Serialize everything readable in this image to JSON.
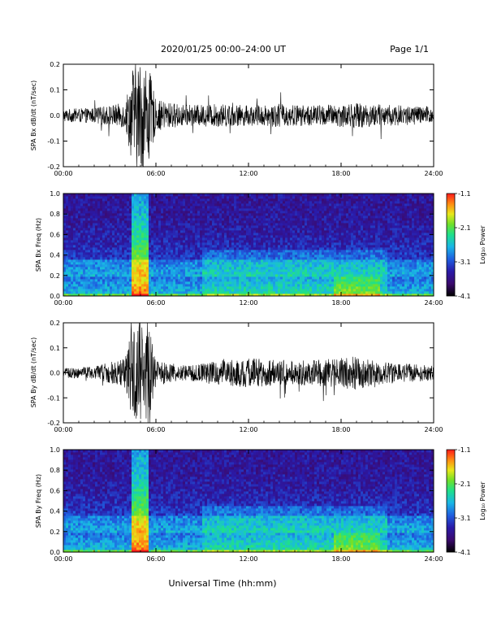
{
  "header": {
    "title": "2020/01/25  00:00–24:00 UT",
    "page": "Page 1/1"
  },
  "colors": {
    "background": "#ffffff",
    "trace": "#000000",
    "colormap": [
      "#000000",
      "#3b0a6e",
      "#2a1aa8",
      "#1f5fe0",
      "#19b6e6",
      "#1fe08a",
      "#6fe02a",
      "#e8e81a",
      "#ff8a12",
      "#ff1a1a"
    ]
  },
  "chart_data": [
    {
      "type": "line",
      "title": "",
      "ylabel": "SPA Bx dB/dt (nT/sec)",
      "xlabel": "",
      "xlim": [
        0,
        24
      ],
      "ylim": [
        -0.2,
        0.2
      ],
      "x_ticks": [
        "00:00",
        "06:00",
        "12:00",
        "18:00",
        "24:00"
      ],
      "y_ticks": [
        "-0.2",
        "-0.1",
        "0.0",
        "0.1",
        "0.2"
      ],
      "envelope": {
        "x_hours": [
          0,
          2,
          4,
          4.5,
          5,
          5.5,
          6,
          8,
          10,
          12,
          14,
          16,
          18,
          19,
          20,
          22,
          24
        ],
        "amplitude": [
          0.025,
          0.03,
          0.05,
          0.2,
          0.22,
          0.2,
          0.06,
          0.04,
          0.045,
          0.04,
          0.045,
          0.04,
          0.045,
          0.05,
          0.045,
          0.04,
          0.035
        ]
      }
    },
    {
      "type": "heatmap",
      "title": "",
      "ylabel": "SPA Bx Freq (Hz)",
      "xlabel": "",
      "xlim": [
        0,
        24
      ],
      "ylim": [
        0,
        1.0
      ],
      "x_ticks": [
        "00:00",
        "06:00",
        "12:00",
        "18:00",
        "24:00"
      ],
      "y_ticks": [
        "0.0",
        "0.2",
        "0.4",
        "0.6",
        "0.8",
        "1.0"
      ],
      "colorbar": {
        "label": "Log₁₀ Power",
        "range": [
          -4.1,
          -1.1
        ],
        "ticks": [
          "-1.1",
          "-2.1",
          "-3.1",
          "-4.1"
        ]
      },
      "features": {
        "storm_band_hours": [
          4.5,
          5.6
        ],
        "enhanced_band_hz": [
          0.2,
          0.35
        ],
        "evening_patch_hours": [
          17.5,
          20.5
        ]
      }
    },
    {
      "type": "line",
      "title": "",
      "ylabel": "SPA By dB/dt (nT/sec)",
      "xlabel": "",
      "xlim": [
        0,
        24
      ],
      "ylim": [
        -0.2,
        0.2
      ],
      "x_ticks": [
        "00:00",
        "06:00",
        "12:00",
        "18:00",
        "24:00"
      ],
      "y_ticks": [
        "-0.2",
        "-0.1",
        "0.0",
        "0.1",
        "0.2"
      ],
      "envelope": {
        "x_hours": [
          0,
          2,
          4,
          4.5,
          5,
          5.5,
          6,
          8,
          10,
          12,
          14,
          16,
          18,
          19,
          20,
          22,
          24
        ],
        "amplitude": [
          0.02,
          0.025,
          0.06,
          0.2,
          0.22,
          0.2,
          0.05,
          0.03,
          0.05,
          0.06,
          0.05,
          0.05,
          0.06,
          0.07,
          0.05,
          0.04,
          0.03
        ]
      }
    },
    {
      "type": "heatmap",
      "title": "",
      "ylabel": "SPA By Freq (Hz)",
      "xlabel": "Universal Time (hh:mm)",
      "xlim": [
        0,
        24
      ],
      "ylim": [
        0,
        1.0
      ],
      "x_ticks": [
        "00:00",
        "06:00",
        "12:00",
        "18:00",
        "24:00"
      ],
      "y_ticks": [
        "0.0",
        "0.2",
        "0.4",
        "0.6",
        "0.8",
        "1.0"
      ],
      "colorbar": {
        "label": "Log₁₀ Power",
        "range": [
          -4.1,
          -1.1
        ],
        "ticks": [
          "-1.1",
          "-2.1",
          "-3.1",
          "-4.1"
        ]
      },
      "features": {
        "storm_band_hours": [
          4.5,
          5.6
        ],
        "enhanced_band_hz": [
          0.2,
          0.35
        ],
        "evening_patch_hours": [
          17.5,
          20.5
        ]
      }
    }
  ]
}
